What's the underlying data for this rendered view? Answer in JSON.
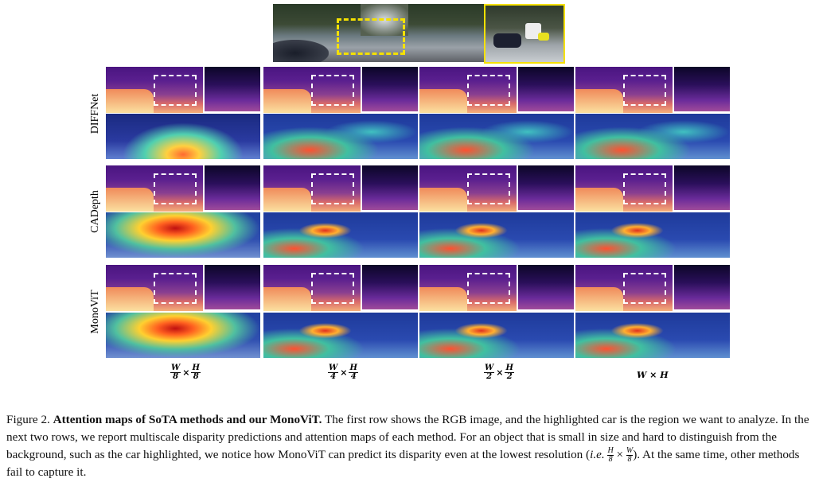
{
  "rows": [
    "DIFFNet",
    "CADepth",
    "MonoViT"
  ],
  "scales": [
    {
      "num1": "W",
      "den1": "8",
      "times": "×",
      "num2": "H",
      "den2": "8"
    },
    {
      "num1": "W",
      "den1": "4",
      "times": "×",
      "num2": "H",
      "den2": "4"
    },
    {
      "num1": "W",
      "den1": "2",
      "times": "×",
      "num2": "H",
      "den2": "2"
    },
    {
      "full": "W × H"
    }
  ],
  "caption": {
    "label": "Figure 2.",
    "title": "Attention maps of SoTA methods and our MonoViT.",
    "text1": " The first row shows the RGB image, and the highlighted car is the region we want to analyze. In the next two rows, we report multiscale disparity predictions and attention maps of each method. For an object that is small in size and hard to distinguish from the background, such as the car highlighted, we notice how MonoViT can predict its disparity even at the lowest resolution (",
    "ie": "i.e.",
    "f1n": "H",
    "f1d": "8",
    "times": "×",
    "f2n": "W",
    "f2d": "8",
    "text2": "). At the same time, other methods fail to capture it."
  },
  "colors": {
    "highlight": "#f5e100"
  }
}
